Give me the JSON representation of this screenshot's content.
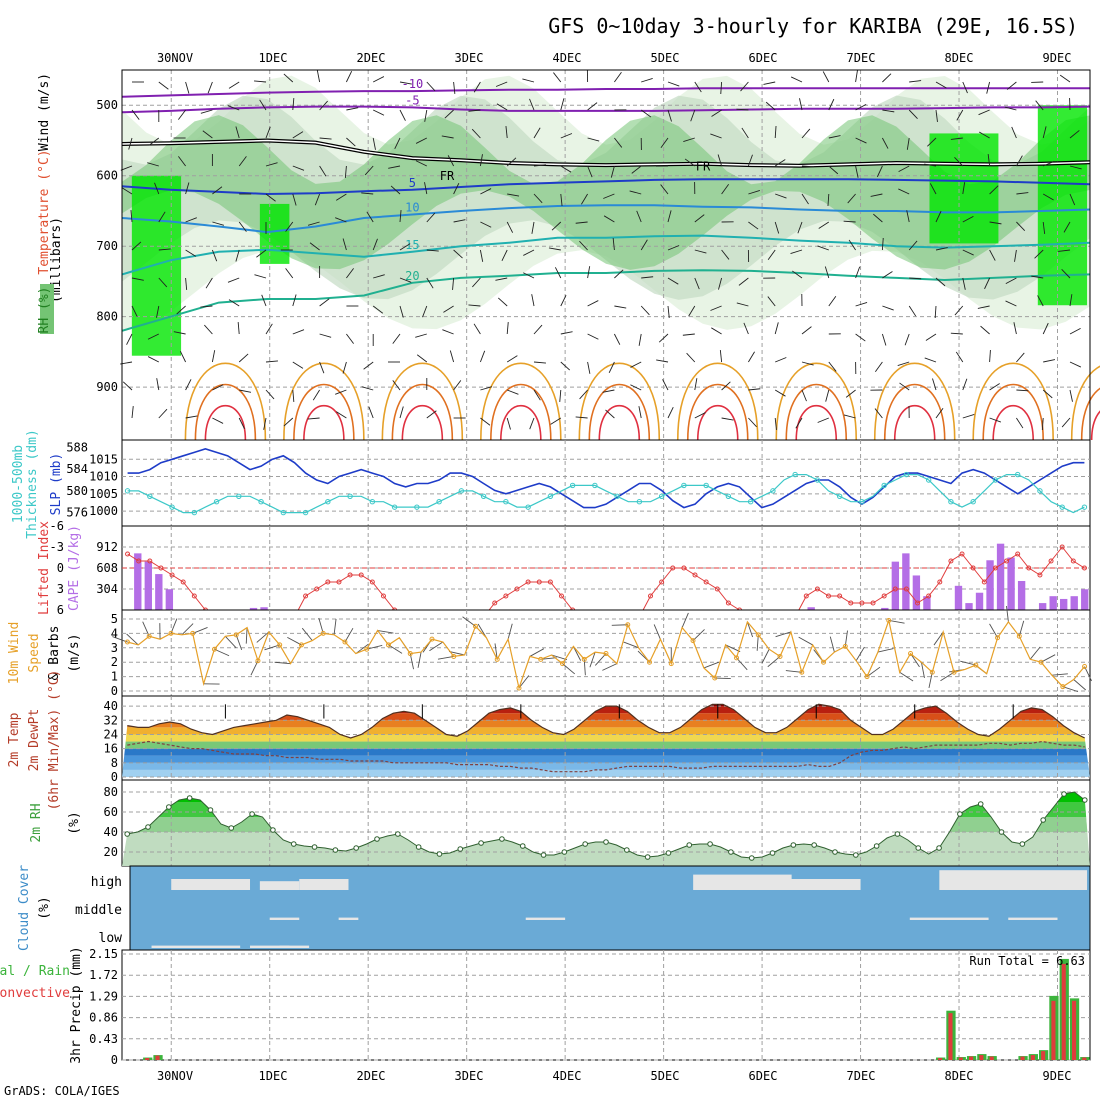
{
  "title": "GFS 0~10day 3-hourly for KARIBA (29E, 16.5S)",
  "footer": "GrADS: COLA/IGES",
  "run_total_label": "Run Total = 6.63",
  "colors": {
    "grid": "#a0a0a0",
    "rh_light": "#e4f2e0",
    "rh_mid": "#c4dcc4",
    "rh_dark": "#74c474",
    "rh_bright": "#00e600",
    "slp": "#1e3cc8",
    "thickness": "#3cc8c8",
    "lifted_index": "#e03c3c",
    "cape": "#b46ee6",
    "wind10m": "#e6a028",
    "rh2m": "#50a050",
    "cloud": "#6aaad6",
    "cloud_clear": "#e6e6e6",
    "precip_total": "#3cb43c",
    "precip_conv": "#e03c3c"
  },
  "chart_data": {
    "type": "line",
    "x_dates": [
      "30NOV",
      "1DEC",
      "2DEC",
      "3DEC",
      "4DEC",
      "5DEC",
      "6DEC",
      "7DEC",
      "8DEC",
      "9DEC"
    ],
    "x_range_days": [
      -0.5,
      9.33
    ],
    "panels": {
      "upper_air": {
        "ylabels": [
          "Wind (m/s)",
          "Temperature (°C)",
          "RH (%)",
          "(millibars)"
        ],
        "y_ticks": [
          500,
          600,
          700,
          800,
          900
        ],
        "ylim": [
          450,
          975
        ],
        "temperature_contours": [
          {
            "label": "-10",
            "color": "#8020b0",
            "levels": [
              488,
              486,
              484,
              482,
              481,
              480,
              480,
              479,
              478,
              478,
              477,
              477,
              476,
              476,
              476,
              476,
              476,
              476,
              476,
              476,
              476
            ]
          },
          {
            "label": "-5",
            "color": "#8020b0",
            "levels": [
              510,
              508,
              505,
              503,
              502,
              502,
              503,
              506,
              508,
              508,
              508,
              508,
              507,
              506,
              505,
              505,
              505,
              504,
              503,
              503,
              502
            ]
          },
          {
            "label": "0 FR",
            "color": "#202020",
            "levels": [
              555,
              554,
              552,
              550,
              553,
              566,
              575,
              578,
              582,
              584,
              585,
              584,
              583,
              585,
              586,
              584,
              582,
              583,
              584,
              583,
              581
            ]
          },
          {
            "label": "5",
            "color": "#1e3cc8",
            "levels": [
              615,
              620,
              623,
              626,
              625,
              622,
              620,
              616,
              612,
              610,
              608,
              606,
              605,
              605,
              605,
              605,
              606,
              607,
              608,
              610,
              612
            ]
          },
          {
            "label": "10",
            "color": "#2a8ad6",
            "levels": [
              660,
              665,
              672,
              680,
              672,
              660,
              655,
              650,
              646,
              643,
              642,
              642,
              644,
              645,
              648,
              650,
              650,
              652,
              652,
              650,
              648
            ]
          },
          {
            "label": "15",
            "color": "#20b0b0",
            "levels": [
              740,
              720,
              708,
              705,
              710,
              715,
              708,
              700,
              695,
              688,
              688,
              686,
              685,
              688,
              692,
              695,
              700,
              702,
              700,
              698,
              695
            ]
          },
          {
            "label": "20",
            "color": "#20b090",
            "levels": [
              820,
              800,
              780,
              775,
              775,
              770,
              752,
              745,
              742,
              738,
              738,
              735,
              734,
              735,
              738,
              742,
              745,
              748,
              745,
              742,
              740
            ]
          }
        ]
      },
      "slp_thickness": {
        "ylabels_left": [
          "1000-500mb",
          "Thickness (dm)"
        ],
        "ylabel_right": "SLP (mb)",
        "thickness_ticks": [
          576,
          580,
          584,
          588
        ],
        "slp_ticks": [
          1000,
          1005,
          1010,
          1015
        ],
        "slp_mb": [
          1011,
          1011,
          1012,
          1014,
          1015,
          1016,
          1017,
          1018,
          1017,
          1016,
          1014,
          1012,
          1013,
          1015,
          1016,
          1014,
          1011,
          1009,
          1008,
          1010,
          1011,
          1012,
          1011,
          1010,
          1008,
          1007,
          1008,
          1008,
          1009,
          1011,
          1011,
          1010,
          1008,
          1006,
          1005,
          1006,
          1007,
          1008,
          1007,
          1005,
          1003,
          1001,
          1001,
          1002,
          1004,
          1006,
          1008,
          1008,
          1006,
          1003,
          1001,
          1002,
          1005,
          1007,
          1008,
          1007,
          1004,
          1001,
          1002,
          1004,
          1006,
          1008,
          1009,
          1009,
          1007,
          1004,
          1002,
          1004,
          1007,
          1010,
          1011,
          1011,
          1010,
          1009,
          1008,
          1011,
          1012,
          1011,
          1009,
          1007,
          1005,
          1007,
          1009,
          1011,
          1013,
          1014,
          1014
        ],
        "thickness_dm": [
          580,
          580,
          579,
          578,
          577,
          576,
          576,
          577,
          578,
          579,
          579,
          579,
          578,
          577,
          576,
          576,
          576,
          577,
          578,
          579,
          579,
          579,
          578,
          578,
          577,
          577,
          577,
          577,
          578,
          579,
          580,
          580,
          579,
          578,
          578,
          577,
          577,
          578,
          579,
          580,
          581,
          581,
          581,
          580,
          579,
          578,
          578,
          578,
          579,
          580,
          581,
          581,
          581,
          580,
          579,
          578,
          578,
          579,
          580,
          582,
          583,
          583,
          582,
          580,
          579,
          578,
          578,
          579,
          581,
          582,
          583,
          583,
          582,
          580,
          578,
          577,
          578,
          580,
          582,
          583,
          583,
          582,
          580,
          578,
          577,
          576,
          577
        ]
      },
      "lifted_cape": {
        "ylabels_left": [
          "Lifted Index"
        ],
        "ylabel_right": "CAPE (J/kg)",
        "li_ticks": [
          -6,
          -3,
          0,
          3,
          6
        ],
        "cape_ticks": [
          304,
          608,
          912
        ],
        "lifted_index": [
          -2,
          -1,
          -1,
          0,
          1,
          2,
          4,
          6,
          7,
          7,
          7,
          7,
          7,
          7,
          7,
          7,
          4,
          3,
          2,
          2,
          1,
          1,
          2,
          4,
          6,
          7,
          7,
          7,
          7,
          7,
          7,
          7,
          7,
          5,
          4,
          3,
          2,
          2,
          2,
          4,
          6,
          7,
          7,
          7,
          7,
          7,
          7,
          4,
          2,
          0,
          0,
          1,
          2,
          3,
          5,
          6,
          7,
          7,
          7,
          7,
          7,
          4,
          3,
          4,
          4,
          5,
          5,
          5,
          4,
          3,
          3,
          5,
          4,
          2,
          -1,
          -2,
          0,
          2,
          0,
          -1,
          -2,
          0,
          1,
          -1,
          -3,
          -1,
          0
        ],
        "cape": [
          0,
          820,
          700,
          520,
          300,
          0,
          0,
          0,
          0,
          0,
          0,
          0,
          30,
          40,
          0,
          0,
          0,
          0,
          0,
          0,
          0,
          0,
          0,
          0,
          0,
          0,
          0,
          0,
          0,
          0,
          0,
          0,
          0,
          0,
          0,
          0,
          0,
          0,
          0,
          0,
          0,
          0,
          0,
          0,
          0,
          0,
          0,
          0,
          0,
          0,
          0,
          0,
          0,
          0,
          0,
          0,
          0,
          0,
          0,
          0,
          0,
          0,
          0,
          0,
          0,
          40,
          0,
          0,
          0,
          0,
          0,
          0,
          30,
          700,
          820,
          500,
          200,
          0,
          0,
          350,
          100,
          250,
          720,
          960,
          760,
          420,
          0,
          100,
          200,
          160,
          200,
          300
        ]
      },
      "wind10m": {
        "ylabels_left": [
          "10m Wind",
          "Speed",
          "& Barbs",
          "(m/s)"
        ],
        "y_ticks": [
          0,
          1,
          2,
          3,
          4,
          5
        ],
        "speed_ms": [
          3.4,
          3.2,
          3.8,
          3.6,
          4.0,
          3.9,
          4.0,
          0.5,
          2.9,
          3.8,
          3.9,
          4.4,
          2.1,
          4.1,
          3.2,
          1.9,
          3.2,
          3.5,
          4.0,
          3.9,
          3.4,
          2.6,
          2.9,
          4.2,
          3.2,
          3.7,
          2.6,
          2.7,
          3.6,
          3.4,
          2.4,
          2.5,
          4.5,
          3.7,
          2.2,
          3.6,
          0.2,
          2.4,
          2.2,
          2.5,
          1.9,
          3.1,
          2.2,
          2.7,
          2.6,
          1.9,
          4.6,
          3.0,
          2.0,
          3.6,
          1.9,
          4.4,
          3.5,
          1.6,
          0.9,
          3.2,
          2.3,
          4.8,
          3.9,
          2.9,
          2.4,
          4.1,
          1.3,
          3.2,
          2.0,
          2.7,
          3.1,
          2.1,
          1.0,
          2.7,
          4.9,
          1.3,
          2.6,
          2.0,
          1.3,
          4.1,
          1.3,
          1.5,
          1.8,
          1.2,
          3.7,
          4.8,
          3.8,
          2.2,
          2.0,
          1.1,
          0.3,
          0.8,
          1.7
        ]
      },
      "temp2m": {
        "ylabels_left": [
          "2m Temp",
          "2m DewPt",
          "(6hr Min/Max) (°C)"
        ],
        "y_ticks": [
          0,
          8,
          16,
          24,
          32,
          40
        ],
        "temp_c": [
          29,
          28,
          28,
          30,
          31,
          30,
          27,
          25,
          24,
          26,
          28,
          29,
          30,
          31,
          32,
          35,
          34,
          32,
          30,
          28,
          24,
          22,
          24,
          28,
          33,
          36,
          37,
          36,
          32,
          28,
          24,
          23,
          26,
          31,
          36,
          38,
          39,
          37,
          32,
          28,
          25,
          24,
          27,
          32,
          37,
          40,
          40,
          37,
          32,
          28,
          25,
          25,
          28,
          33,
          38,
          41,
          41,
          38,
          33,
          28,
          25,
          25,
          28,
          33,
          38,
          41,
          40,
          38,
          32,
          28,
          24,
          24,
          27,
          32,
          37,
          39,
          40,
          36,
          31,
          27,
          24,
          23,
          27,
          32,
          37,
          39,
          38,
          34,
          29,
          25,
          22
        ],
        "dewpoint_c": [
          18,
          19,
          20,
          19,
          18,
          17,
          16,
          16,
          15,
          14,
          13,
          13,
          13,
          12,
          12,
          11,
          11,
          11,
          10,
          10,
          10,
          9,
          9,
          9,
          9,
          8,
          8,
          8,
          8,
          8,
          8,
          7,
          7,
          7,
          7,
          6,
          6,
          5,
          5,
          4,
          3,
          3,
          3,
          3,
          4,
          4,
          5,
          6,
          6,
          6,
          6,
          6,
          5,
          5,
          5,
          6,
          6,
          6,
          6,
          6,
          6,
          6,
          6,
          6,
          7,
          6,
          6,
          8,
          12,
          14,
          15,
          15,
          16,
          17,
          16,
          17,
          18,
          18,
          18,
          18,
          18,
          19,
          19,
          18,
          19,
          19,
          20,
          19,
          18,
          18,
          17
        ]
      },
      "rh2m": {
        "ylabels_left": [
          "2m RH",
          "(%)"
        ],
        "y_ticks": [
          20,
          40,
          60,
          80
        ],
        "rh_pct": [
          38,
          40,
          45,
          55,
          65,
          72,
          74,
          72,
          62,
          48,
          44,
          50,
          58,
          55,
          42,
          32,
          28,
          26,
          25,
          24,
          22,
          21,
          24,
          28,
          33,
          36,
          38,
          32,
          25,
          20,
          18,
          19,
          23,
          26,
          29,
          31,
          33,
          30,
          26,
          20,
          17,
          17,
          20,
          24,
          28,
          30,
          30,
          27,
          22,
          17,
          15,
          16,
          19,
          23,
          27,
          28,
          28,
          25,
          20,
          15,
          14,
          15,
          19,
          24,
          27,
          28,
          27,
          24,
          20,
          18,
          17,
          20,
          26,
          34,
          38,
          32,
          24,
          18,
          24,
          40,
          58,
          65,
          68,
          55,
          40,
          30,
          28,
          35,
          52,
          65,
          78,
          80,
          72
        ]
      },
      "cloud_cover": {
        "ylabels_left": [
          "Cloud Cover",
          "(%)"
        ],
        "layer_labels": [
          "high",
          "middle",
          "low"
        ]
      },
      "precip": {
        "ylabels_left": [
          "3hr Precip (mm)"
        ],
        "ylabels_outer": [
          "Total / Rain",
          "Convective"
        ],
        "y_ticks": [
          0,
          0.43,
          0.86,
          1.29,
          1.72,
          2.15
        ],
        "total_mm": [
          0,
          0,
          0.05,
          0.1,
          0,
          0,
          0,
          0,
          0,
          0,
          0,
          0,
          0,
          0,
          0,
          0,
          0,
          0,
          0,
          0,
          0,
          0,
          0,
          0,
          0,
          0,
          0,
          0,
          0,
          0,
          0,
          0,
          0,
          0,
          0,
          0,
          0,
          0,
          0,
          0,
          0,
          0,
          0,
          0,
          0,
          0,
          0,
          0,
          0,
          0,
          0,
          0,
          0,
          0,
          0,
          0,
          0,
          0,
          0,
          0,
          0,
          0,
          0,
          0,
          0,
          0,
          0,
          0,
          0,
          0,
          0,
          0,
          0,
          0,
          0,
          0,
          0,
          0,
          0,
          0.05,
          1.0,
          0.06,
          0.08,
          0.12,
          0.08,
          0,
          0,
          0.08,
          0.12,
          0.2,
          1.3,
          2.05,
          1.25,
          0.06
        ],
        "conv_mm": [
          0,
          0,
          0.04,
          0.09,
          0,
          0,
          0,
          0,
          0,
          0,
          0,
          0,
          0,
          0,
          0,
          0,
          0,
          0,
          0,
          0,
          0,
          0,
          0,
          0,
          0,
          0,
          0,
          0,
          0,
          0,
          0,
          0,
          0,
          0,
          0,
          0,
          0,
          0,
          0,
          0,
          0,
          0,
          0,
          0,
          0,
          0,
          0,
          0,
          0,
          0,
          0,
          0,
          0,
          0,
          0,
          0,
          0,
          0,
          0,
          0,
          0,
          0,
          0,
          0,
          0,
          0,
          0,
          0,
          0,
          0,
          0,
          0,
          0,
          0,
          0,
          0,
          0,
          0,
          0,
          0.04,
          0.95,
          0.05,
          0.07,
          0.1,
          0.07,
          0,
          0,
          0.07,
          0.1,
          0.18,
          1.2,
          1.95,
          1.2,
          0.05
        ]
      }
    }
  }
}
